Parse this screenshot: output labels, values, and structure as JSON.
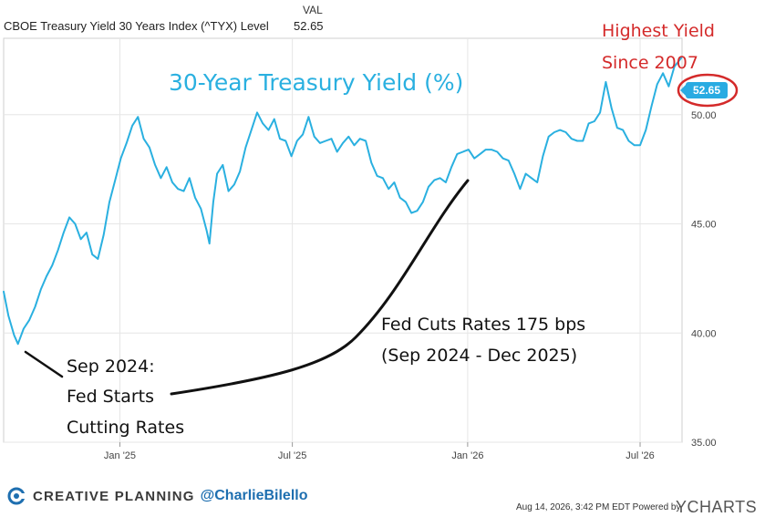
{
  "header": {
    "series_name": "CBOE Treasury Yield 30 Years Index (^TYX) Level",
    "column_label": "VAL",
    "value": "52.65"
  },
  "annotations": {
    "chart_title": "30-Year Treasury Yield (%)",
    "highest_line1": "Highest Yield",
    "highest_line2": "Since 2007",
    "start_line1": "Sep 2024:",
    "start_line2": "Fed Starts",
    "start_line3": "Cutting Rates",
    "cuts_line1": "Fed Cuts Rates 175 bps",
    "cuts_line2": "(Sep 2024 - Dec 2025)",
    "last_value_badge": "52.65"
  },
  "footer": {
    "brand": "CREATIVE PLANNING",
    "handle": "@CharlieBilello",
    "meta": "Aug 14, 2026, 3:42 PM EDT Powered by",
    "ycharts": "YCHARTS"
  },
  "colors": {
    "line": "#2ab0e0",
    "badge": "#29abe2",
    "highlight_red": "#d42a2a",
    "grid": "#e6e6e6",
    "brand_blue": "#1e6fb0"
  },
  "icons": {
    "brand_logo": "creative-planning-logo-icon"
  },
  "chart_data": {
    "type": "line",
    "title": "",
    "xlabel": "",
    "ylabel": "",
    "x_ticks": [
      "Jan '25",
      "Jul '25",
      "Jan '26",
      "Jul '26"
    ],
    "x_tick_dates": [
      "2025-01-01",
      "2025-07-01",
      "2026-01-01",
      "2026-07-01"
    ],
    "y_ticks": [
      35.0,
      40.0,
      45.0,
      50.0
    ],
    "y_tick_labels": [
      "35.00",
      "40.00",
      "45.00",
      "50.00"
    ],
    "ylim": [
      35.0,
      53.5
    ],
    "xlim": [
      "2024-09-01",
      "2026-08-14"
    ],
    "grid": true,
    "series": [
      {
        "x": [
          "2024-09-01",
          "2024-09-06",
          "2024-09-12",
          "2024-09-16",
          "2024-09-22",
          "2024-09-28",
          "2024-10-04",
          "2024-10-10",
          "2024-10-16",
          "2024-10-22",
          "2024-10-28",
          "2024-11-03",
          "2024-11-09",
          "2024-11-15",
          "2024-11-21",
          "2024-11-27",
          "2024-12-03",
          "2024-12-09",
          "2024-12-15",
          "2024-12-21",
          "2024-12-27",
          "2025-01-02",
          "2025-01-08",
          "2025-01-14",
          "2025-01-20",
          "2025-01-26",
          "2025-02-01",
          "2025-02-07",
          "2025-02-13",
          "2025-02-19",
          "2025-02-25",
          "2025-03-03",
          "2025-03-09",
          "2025-03-15",
          "2025-03-21",
          "2025-03-27",
          "2025-04-02",
          "2025-04-05",
          "2025-04-09",
          "2025-04-13",
          "2025-04-19",
          "2025-04-25",
          "2025-05-01",
          "2025-05-07",
          "2025-05-13",
          "2025-05-19",
          "2025-05-25",
          "2025-05-31",
          "2025-06-06",
          "2025-06-12",
          "2025-06-18",
          "2025-06-24",
          "2025-06-30",
          "2025-07-06",
          "2025-07-12",
          "2025-07-18",
          "2025-07-24",
          "2025-07-30",
          "2025-08-05",
          "2025-08-11",
          "2025-08-17",
          "2025-08-23",
          "2025-08-29",
          "2025-09-04",
          "2025-09-10",
          "2025-09-16",
          "2025-09-22",
          "2025-09-28",
          "2025-10-04",
          "2025-10-10",
          "2025-10-16",
          "2025-10-22",
          "2025-10-28",
          "2025-11-03",
          "2025-11-09",
          "2025-11-15",
          "2025-11-21",
          "2025-11-27",
          "2025-12-03",
          "2025-12-09",
          "2025-12-15",
          "2025-12-21",
          "2025-12-27",
          "2026-01-02",
          "2026-01-08",
          "2026-01-14",
          "2026-01-20",
          "2026-01-26",
          "2026-02-01",
          "2026-02-07",
          "2026-02-13",
          "2026-02-19",
          "2026-02-25",
          "2026-03-03",
          "2026-03-09",
          "2026-03-15",
          "2026-03-21",
          "2026-03-27",
          "2026-04-02",
          "2026-04-08",
          "2026-04-14",
          "2026-04-20",
          "2026-04-26",
          "2026-05-02",
          "2026-05-08",
          "2026-05-14",
          "2026-05-20",
          "2026-05-26",
          "2026-06-01",
          "2026-06-07",
          "2026-06-13",
          "2026-06-19",
          "2026-06-25",
          "2026-07-01",
          "2026-07-07",
          "2026-07-13",
          "2026-07-19",
          "2026-07-25",
          "2026-07-31",
          "2026-08-06",
          "2026-08-14"
        ],
        "values": [
          41.9,
          40.8,
          39.9,
          39.5,
          40.2,
          40.6,
          41.2,
          42.0,
          42.6,
          43.1,
          43.8,
          44.6,
          45.3,
          45.0,
          44.3,
          44.6,
          43.6,
          43.4,
          44.5,
          46.0,
          47.0,
          48.0,
          48.7,
          49.5,
          49.9,
          48.9,
          48.5,
          47.7,
          47.1,
          47.6,
          46.9,
          46.6,
          46.5,
          47.1,
          46.2,
          45.7,
          44.7,
          44.1,
          46.0,
          47.3,
          47.7,
          46.5,
          46.8,
          47.4,
          48.5,
          49.3,
          50.1,
          49.6,
          49.3,
          49.8,
          48.9,
          48.8,
          48.1,
          48.8,
          49.1,
          49.9,
          49.0,
          48.7,
          48.8,
          48.9,
          48.3,
          48.7,
          49.0,
          48.6,
          48.9,
          48.8,
          47.8,
          47.2,
          47.1,
          46.6,
          46.9,
          46.2,
          46.0,
          45.5,
          45.6,
          46.0,
          46.7,
          47.0,
          47.1,
          46.9,
          47.6,
          48.2,
          48.3,
          48.4,
          48.0,
          48.2,
          48.4,
          48.4,
          48.3,
          48.0,
          47.9,
          47.3,
          46.6,
          47.3,
          47.1,
          46.9,
          48.1,
          49.0,
          49.2,
          49.3,
          49.2,
          48.9,
          48.8,
          48.8,
          49.6,
          49.7,
          50.1,
          51.5,
          50.3,
          49.4,
          49.3,
          48.8,
          48.6,
          48.6,
          49.3,
          50.4,
          51.4,
          51.9,
          51.3,
          52.2,
          52.65
        ]
      }
    ]
  }
}
